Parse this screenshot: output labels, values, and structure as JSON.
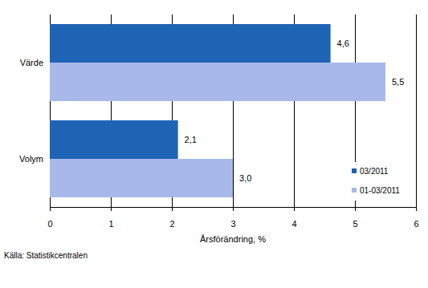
{
  "chart_data": {
    "type": "bar",
    "orientation": "horizontal",
    "categories": [
      "Värde",
      "Volym"
    ],
    "series": [
      {
        "name": "03/2011",
        "color": "#1f63b5",
        "values": [
          4.6,
          2.1
        ],
        "value_labels": [
          "4,6",
          "2,1"
        ]
      },
      {
        "name": "01-03/2011",
        "color": "#a7b9e9",
        "values": [
          5.5,
          3.0
        ],
        "value_labels": [
          "5,5",
          "3,0"
        ]
      }
    ],
    "xlim": [
      0,
      6
    ],
    "xticks": [
      0,
      1,
      2,
      3,
      4,
      5,
      6
    ],
    "xlabel": "Årsförändring, %",
    "source": "Källa: Statistikcentralen",
    "grid": true,
    "legend": "lower right",
    "data_labels": true
  }
}
